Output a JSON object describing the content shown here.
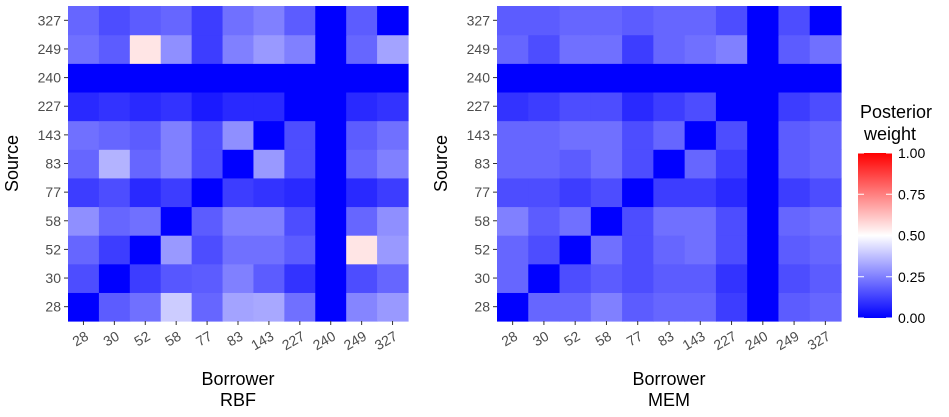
{
  "chart_data": [
    {
      "type": "heatmap",
      "subtitle": "RBF",
      "xlabel": "Borrower",
      "ylabel": "Source",
      "x": [
        "28",
        "30",
        "52",
        "58",
        "77",
        "83",
        "143",
        "227",
        "240",
        "249",
        "327"
      ],
      "y": [
        "28",
        "30",
        "52",
        "58",
        "77",
        "83",
        "143",
        "227",
        "240",
        "249",
        "327"
      ],
      "values": [
        [
          0.0,
          0.18,
          0.22,
          0.4,
          0.2,
          0.32,
          0.33,
          0.22,
          0.0,
          0.26,
          0.3
        ],
        [
          0.15,
          0.0,
          0.12,
          0.17,
          0.18,
          0.25,
          0.18,
          0.1,
          0.0,
          0.15,
          0.2
        ],
        [
          0.2,
          0.12,
          0.0,
          0.3,
          0.15,
          0.22,
          0.22,
          0.18,
          0.0,
          0.55,
          0.3
        ],
        [
          0.28,
          0.2,
          0.22,
          0.0,
          0.18,
          0.25,
          0.25,
          0.15,
          0.0,
          0.2,
          0.28
        ],
        [
          0.12,
          0.15,
          0.08,
          0.12,
          0.0,
          0.12,
          0.1,
          0.08,
          0.0,
          0.08,
          0.12
        ],
        [
          0.2,
          0.35,
          0.2,
          0.25,
          0.15,
          0.0,
          0.3,
          0.15,
          0.0,
          0.2,
          0.25
        ],
        [
          0.22,
          0.2,
          0.18,
          0.25,
          0.15,
          0.28,
          0.0,
          0.15,
          0.0,
          0.18,
          0.22
        ],
        [
          0.08,
          0.1,
          0.08,
          0.1,
          0.05,
          0.08,
          0.08,
          0.0,
          0.0,
          0.08,
          0.1
        ],
        [
          0.0,
          0.0,
          0.0,
          0.0,
          0.0,
          0.0,
          0.0,
          0.0,
          0.0,
          0.0,
          0.0
        ],
        [
          0.22,
          0.18,
          0.55,
          0.28,
          0.12,
          0.25,
          0.3,
          0.25,
          0.0,
          0.2,
          0.32
        ],
        [
          0.2,
          0.15,
          0.18,
          0.2,
          0.12,
          0.22,
          0.25,
          0.18,
          0.0,
          0.18,
          0.0
        ]
      ]
    },
    {
      "type": "heatmap",
      "subtitle": "MEM",
      "xlabel": "Borrower",
      "ylabel": "Source",
      "x": [
        "28",
        "30",
        "52",
        "58",
        "77",
        "83",
        "143",
        "227",
        "240",
        "249",
        "327"
      ],
      "y": [
        "28",
        "30",
        "52",
        "58",
        "77",
        "83",
        "143",
        "227",
        "240",
        "249",
        "327"
      ],
      "values": [
        [
          0.0,
          0.2,
          0.2,
          0.25,
          0.18,
          0.2,
          0.2,
          0.12,
          0.0,
          0.18,
          0.2
        ],
        [
          0.2,
          0.0,
          0.15,
          0.18,
          0.15,
          0.18,
          0.18,
          0.1,
          0.0,
          0.15,
          0.18
        ],
        [
          0.2,
          0.15,
          0.0,
          0.22,
          0.15,
          0.2,
          0.22,
          0.15,
          0.0,
          0.18,
          0.2
        ],
        [
          0.25,
          0.18,
          0.22,
          0.0,
          0.15,
          0.22,
          0.22,
          0.15,
          0.0,
          0.2,
          0.22
        ],
        [
          0.15,
          0.15,
          0.12,
          0.15,
          0.0,
          0.12,
          0.12,
          0.08,
          0.0,
          0.12,
          0.15
        ],
        [
          0.2,
          0.2,
          0.18,
          0.22,
          0.15,
          0.0,
          0.2,
          0.12,
          0.0,
          0.18,
          0.2
        ],
        [
          0.2,
          0.2,
          0.22,
          0.22,
          0.15,
          0.2,
          0.0,
          0.15,
          0.0,
          0.18,
          0.2
        ],
        [
          0.1,
          0.12,
          0.15,
          0.15,
          0.08,
          0.12,
          0.15,
          0.0,
          0.0,
          0.12,
          0.15
        ],
        [
          0.0,
          0.0,
          0.0,
          0.0,
          0.0,
          0.0,
          0.0,
          0.0,
          0.0,
          0.0,
          0.0
        ],
        [
          0.2,
          0.15,
          0.22,
          0.22,
          0.12,
          0.2,
          0.22,
          0.25,
          0.0,
          0.18,
          0.22
        ],
        [
          0.18,
          0.18,
          0.2,
          0.2,
          0.18,
          0.2,
          0.2,
          0.15,
          0.0,
          0.15,
          0.0
        ]
      ]
    }
  ],
  "legend": {
    "title_line1": "Posterior",
    "title_line2": "weight",
    "ticks": [
      "1.00",
      "0.75",
      "0.50",
      "0.25",
      "0.00"
    ],
    "tick_values": [
      1.0,
      0.75,
      0.5,
      0.25,
      0.0
    ],
    "range": [
      0,
      1
    ],
    "colors": {
      "low": "#0000ff",
      "mid": "#ffffff",
      "high": "#ff0000"
    }
  }
}
